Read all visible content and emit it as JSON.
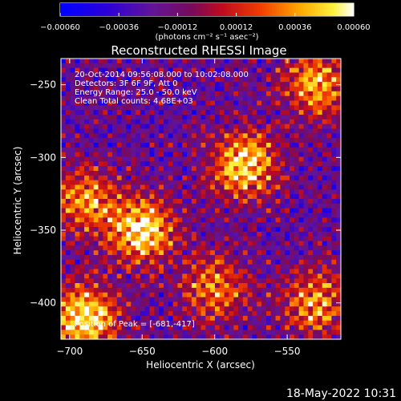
{
  "chart_data": {
    "type": "heatmap",
    "title": "Reconstructed RHESSI Image",
    "xlabel": "Heliocentric X (arcsec)",
    "ylabel": "Heliocentric Y (arcsec)",
    "xlim": [
      -706,
      -513
    ],
    "ylim": [
      -425,
      -232
    ],
    "xticks": [
      -700,
      -650,
      -600,
      -550
    ],
    "xtick_labels": [
      "−700",
      "−650",
      "−600",
      "−550"
    ],
    "yticks": [
      -250,
      -300,
      -350,
      -400
    ],
    "ytick_labels": [
      "−250",
      "−300",
      "−350",
      "−400"
    ],
    "colorbar": {
      "range": [
        -0.0006,
        0.0006
      ],
      "ticks": [
        -0.0006,
        -0.00036,
        -0.00012,
        0.00012,
        0.00036,
        0.0006
      ],
      "tick_labels": [
        "−0.00060",
        "−0.00036",
        "−0.00012",
        "0.00012",
        "0.00036",
        "0.00060"
      ],
      "units": "(photons cm⁻² s⁻¹ asec⁻²)",
      "colormap": "rainbow-hot"
    },
    "annotations": [
      "20-Oct-2014 09:56:08.000 to 10:02:08.000",
      "Detectors: 3F 6F 9F, Att 0",
      "Energy Range: 25.0 - 50.0 keV",
      "Clean    Total counts: 4.68E+03"
    ],
    "peak_label": "Position of Peak = [-681,-417]",
    "peak_position": [
      -681,
      -417
    ],
    "bright_regions": [
      {
        "x": -650,
        "y": -350,
        "intensity": 0.00055
      },
      {
        "x": -580,
        "y": -305,
        "intensity": 0.0005
      },
      {
        "x": -690,
        "y": -410,
        "intensity": 0.0006
      },
      {
        "x": -530,
        "y": -250,
        "intensity": 0.0004
      },
      {
        "x": -530,
        "y": -400,
        "intensity": 0.00035
      },
      {
        "x": -690,
        "y": -330,
        "intensity": 0.00035
      },
      {
        "x": -600,
        "y": -390,
        "intensity": 0.0003
      }
    ],
    "background_level": -0.0002
  },
  "footer": {
    "timestamp": "18-May-2022 10:31"
  }
}
